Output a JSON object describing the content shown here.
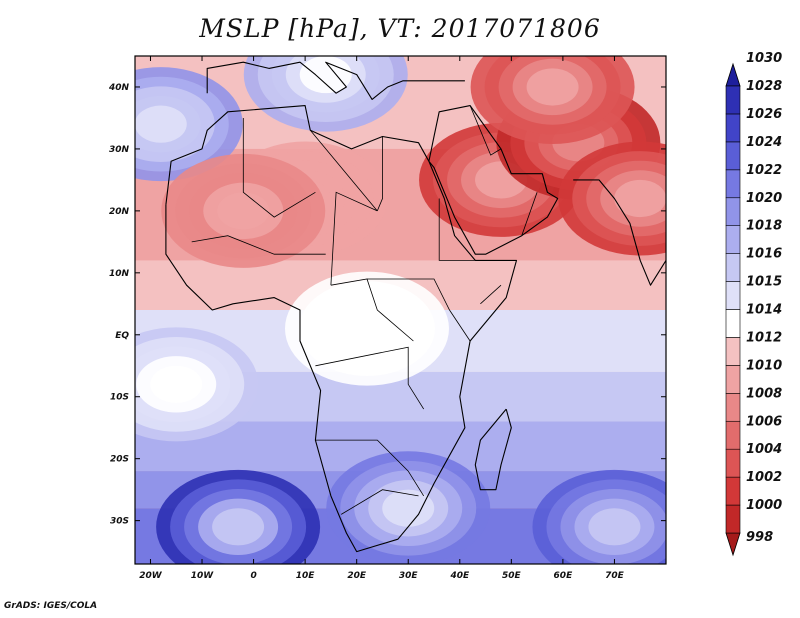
{
  "title": "MSLP [hPa], VT: 2017071806",
  "credit": "GrADS: IGES/COLA",
  "map": {
    "region": "Africa and Middle East",
    "lon_range": [
      -23,
      80
    ],
    "lat_range": [
      -37,
      45
    ],
    "lon_ticks": [
      {
        "lon": -20,
        "label": "20W"
      },
      {
        "lon": -10,
        "label": "10W"
      },
      {
        "lon": 0,
        "label": "0"
      },
      {
        "lon": 10,
        "label": "10E"
      },
      {
        "lon": 20,
        "label": "20E"
      },
      {
        "lon": 30,
        "label": "30E"
      },
      {
        "lon": 40,
        "label": "40E"
      },
      {
        "lon": 50,
        "label": "50E"
      },
      {
        "lon": 60,
        "label": "60E"
      },
      {
        "lon": 70,
        "label": "70E"
      }
    ],
    "lat_ticks": [
      {
        "lat": 40,
        "label": "40N"
      },
      {
        "lat": 30,
        "label": "30N"
      },
      {
        "lat": 20,
        "label": "20N"
      },
      {
        "lat": 10,
        "label": "10N"
      },
      {
        "lat": 0,
        "label": "EQ"
      },
      {
        "lat": -10,
        "label": "10S"
      },
      {
        "lat": -20,
        "label": "20S"
      },
      {
        "lat": -30,
        "label": "30S"
      }
    ],
    "pressure_centers": [
      {
        "lon": -3,
        "lat": -31,
        "hPa": 1028
      },
      {
        "lon": 70,
        "lat": -31,
        "hPa": 1024
      },
      {
        "lon": -18,
        "lat": 34,
        "hPa": 1020
      },
      {
        "lon": 14,
        "lat": 42,
        "hPa": 1018
      },
      {
        "lon": 30,
        "lat": -28,
        "hPa": 1022
      },
      {
        "lon": -15,
        "lat": -8,
        "hPa": 1016
      },
      {
        "lon": 22,
        "lat": 1,
        "hPa": 1014
      },
      {
        "lon": 48,
        "lat": 25,
        "hPa": 1002
      },
      {
        "lon": 63,
        "lat": 31,
        "hPa": 1000
      },
      {
        "lon": 58,
        "lat": 40,
        "hPa": 1004
      },
      {
        "lon": 75,
        "lat": 22,
        "hPa": 1002
      },
      {
        "lon": 10,
        "lat": 22,
        "hPa": 1010
      },
      {
        "lon": -2,
        "lat": 20,
        "hPa": 1008
      }
    ]
  },
  "colorbar": {
    "levels": [
      "998",
      "1000",
      "1002",
      "1004",
      "1006",
      "1008",
      "1010",
      "1012",
      "1014",
      "1015",
      "1016",
      "1018",
      "1020",
      "1022",
      "1024",
      "1026",
      "1028",
      "1030"
    ],
    "colors": [
      "#a51a1a",
      "#c12828",
      "#d23838",
      "#dd5555",
      "#e26c6c",
      "#e98888",
      "#efa3a3",
      "#f4c1c1",
      "#ffffff",
      "#dfe0f8",
      "#c6c8f3",
      "#acaeef",
      "#9194e9",
      "#7679e2",
      "#5a5ed7",
      "#4144c8",
      "#2e30b4",
      "#1e1f9c"
    ]
  }
}
